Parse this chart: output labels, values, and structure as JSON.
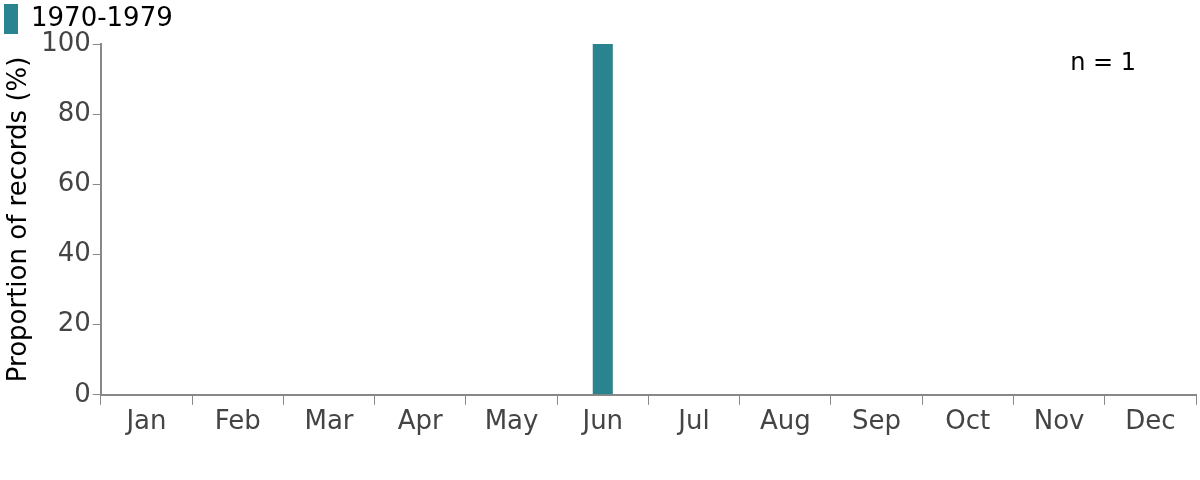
{
  "chart_data": {
    "type": "bar",
    "ylabel": "Proportion of records (%)",
    "categories": [
      "Jan",
      "Feb",
      "Mar",
      "Apr",
      "May",
      "Jun",
      "Jul",
      "Aug",
      "Sep",
      "Oct",
      "Nov",
      "Dec"
    ],
    "series": [
      {
        "name": "1970-1979",
        "color": "#2a8490",
        "values": [
          0,
          0,
          0,
          0,
          0,
          100,
          0,
          0,
          0,
          0,
          0,
          0
        ]
      }
    ],
    "ylim": [
      0,
      100
    ],
    "yticks": [
      0,
      20,
      40,
      60,
      80,
      100
    ],
    "grid": false,
    "legend": "top left",
    "annotations": [
      "n = 1"
    ]
  }
}
